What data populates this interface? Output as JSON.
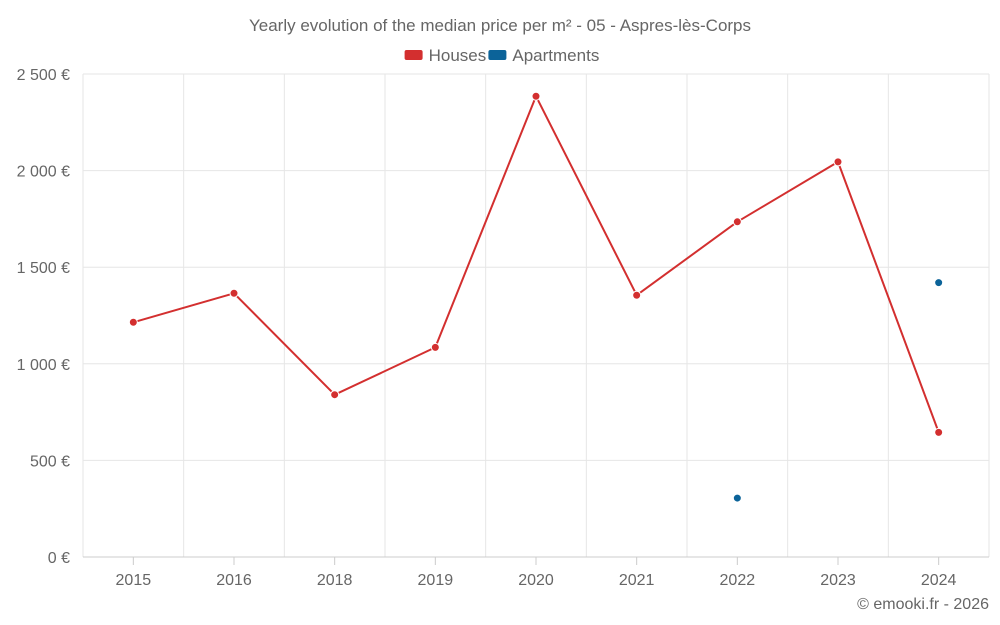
{
  "chart_data": {
    "type": "line",
    "title": "Yearly evolution of the median price per m² - 05 - Aspres-lès-Corps",
    "categories": [
      "2015",
      "2016",
      "2018",
      "2019",
      "2020",
      "2021",
      "2022",
      "2023",
      "2024"
    ],
    "ylim": [
      0,
      2500
    ],
    "yticks": [
      0,
      500,
      1000,
      1500,
      2000,
      2500
    ],
    "ytick_labels": [
      "0 €",
      "500 €",
      "1 000 €",
      "1 500 €",
      "2 000 €",
      "2 500 €"
    ],
    "grid": true,
    "legend_position": "top-center",
    "series": [
      {
        "name": "Houses",
        "color": "#d32f2f",
        "style": "line-markers",
        "values": [
          1215,
          1365,
          840,
          1085,
          2385,
          1355,
          1735,
          2045,
          645
        ]
      },
      {
        "name": "Apartments",
        "color": "#0b6399",
        "style": "markers",
        "values": [
          null,
          null,
          null,
          null,
          null,
          null,
          305,
          null,
          1420
        ]
      }
    ],
    "credit": "© emooki.fr - 2026"
  }
}
